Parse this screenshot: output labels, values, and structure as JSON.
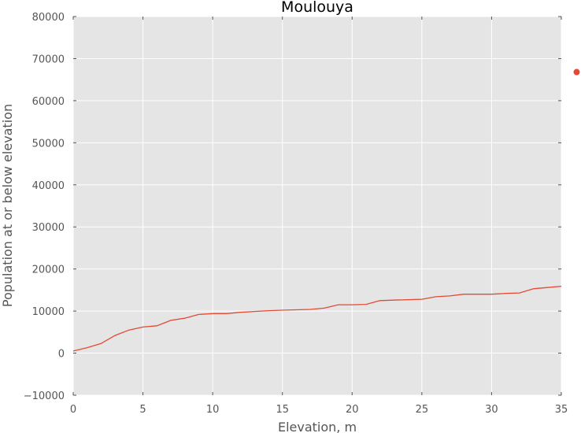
{
  "chart_data": {
    "type": "line",
    "title": "Moulouya",
    "xlabel": "Elevation, m",
    "ylabel": "Population at or below elevation",
    "xlim": [
      0,
      35
    ],
    "ylim": [
      -10000,
      80000
    ],
    "x_ticks": [
      "0",
      "5",
      "10",
      "15",
      "20",
      "25",
      "30",
      "35"
    ],
    "y_ticks": [
      "−10000",
      "0",
      "10000",
      "20000",
      "30000",
      "40000",
      "50000",
      "60000",
      "70000",
      "80000"
    ],
    "grid": true,
    "background_color": "#e5e5e5",
    "series": [
      {
        "color": "#e24a33",
        "x": [
          0,
          1,
          2,
          3,
          4,
          5,
          6,
          7,
          8,
          9,
          10,
          11,
          12,
          13,
          14,
          15,
          16,
          17,
          18,
          19,
          20,
          21,
          22,
          23,
          24,
          25,
          26,
          27,
          28,
          29,
          30,
          31,
          32,
          33,
          34,
          35
        ],
        "y": [
          500,
          1300,
          2300,
          4200,
          5500,
          6200,
          6500,
          7800,
          8300,
          9200,
          9400,
          9400,
          9700,
          9900,
          10100,
          10200,
          10300,
          10400,
          10700,
          11500,
          11500,
          11600,
          12500,
          12600,
          12700,
          12800,
          13400,
          13600,
          14000,
          14000,
          14000,
          14200,
          14300,
          15300,
          15600,
          15900
        ]
      }
    ],
    "outlier_point": {
      "x": 36.1,
      "y": 66800,
      "color": "#e24a33"
    }
  }
}
